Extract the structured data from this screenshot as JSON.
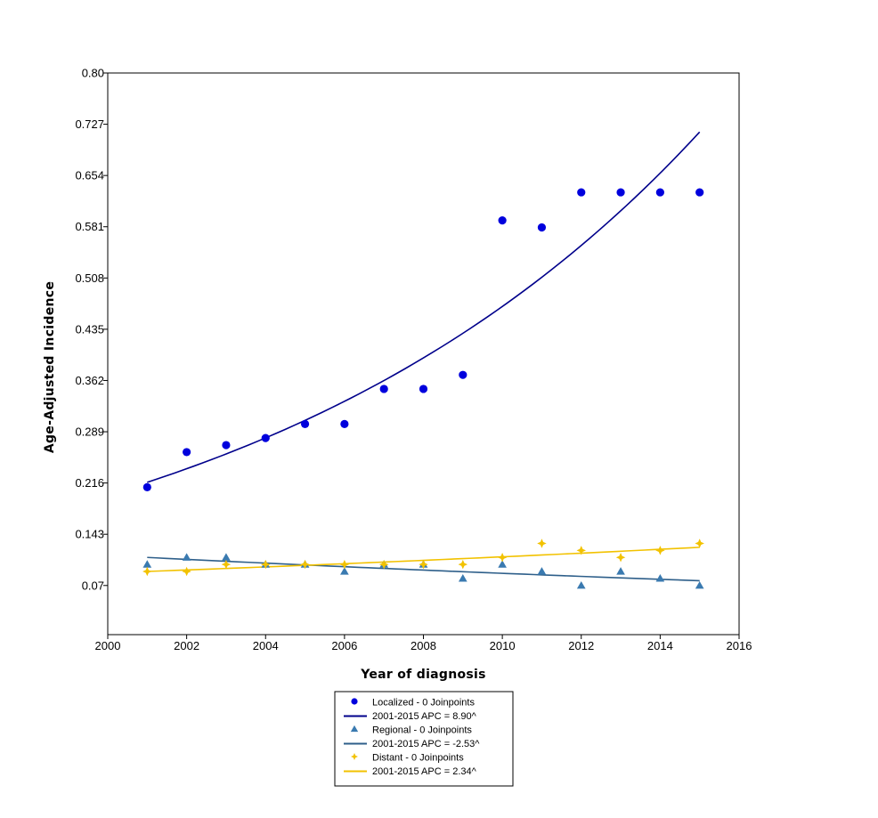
{
  "chart_data": {
    "type": "scatter",
    "xlabel": "Year of diagnosis",
    "ylabel": "Age-Adjusted Incidence",
    "xlim": [
      2000,
      2016
    ],
    "ylim": [
      0,
      0.8
    ],
    "x_ticks": [
      "2000",
      "2002",
      "2004",
      "2006",
      "2008",
      "2010",
      "2012",
      "2014",
      "2016"
    ],
    "y_ticks": [
      "0.07",
      "0.143",
      "0.216",
      "0.289",
      "0.362",
      "0.435",
      "0.508",
      "0.581",
      "0.654",
      "0.727",
      "0.80"
    ],
    "legend_position": "bottom",
    "grid": false,
    "x": [
      2001,
      2002,
      2003,
      2004,
      2005,
      2006,
      2007,
      2008,
      2009,
      2010,
      2011,
      2012,
      2013,
      2014,
      2015
    ],
    "series": [
      {
        "name": "Localized - 0 Joinpoints",
        "marker": "circle",
        "color": "#0000dd",
        "values": [
          0.21,
          0.26,
          0.27,
          0.28,
          0.3,
          0.3,
          0.35,
          0.35,
          0.37,
          0.59,
          0.58,
          0.63,
          0.63,
          0.63,
          0.63
        ],
        "fit_label": "2001-2015 APC  = 8.90^",
        "fit_color": "#00008b",
        "fit_start": 0.217,
        "fit_apc": 8.9
      },
      {
        "name": "Regional - 0 Joinpoints",
        "marker": "triangle",
        "color": "#3a7ab0",
        "values": [
          0.1,
          0.11,
          0.11,
          0.1,
          0.1,
          0.09,
          0.1,
          0.1,
          0.08,
          0.1,
          0.09,
          0.07,
          0.09,
          0.08,
          0.07
        ],
        "fit_label": "2001-2015 APC  = -2.53^",
        "fit_color": "#2e5f8a",
        "fit_start": 0.11,
        "fit_apc": -2.53
      },
      {
        "name": "Distant - 0 Joinpoints",
        "marker": "plus",
        "color": "#f2c200",
        "values": [
          0.09,
          0.09,
          0.1,
          0.1,
          0.1,
          0.1,
          0.1,
          0.1,
          0.1,
          0.11,
          0.13,
          0.12,
          0.11,
          0.12,
          0.13
        ],
        "fit_label": "2001-2015 APC  = 2.34^",
        "fit_color": "#f2c200",
        "fit_start": 0.09,
        "fit_apc": 2.34
      }
    ]
  }
}
